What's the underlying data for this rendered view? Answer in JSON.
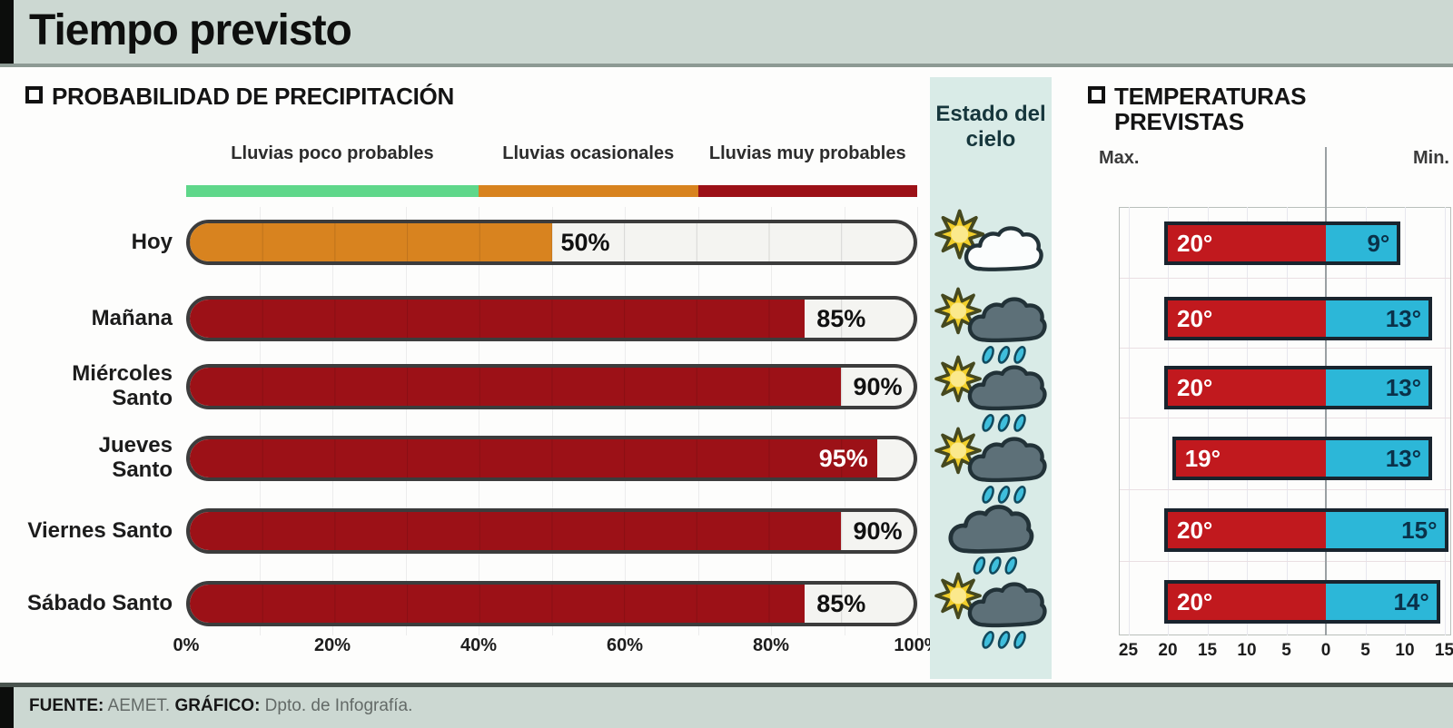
{
  "title": "Tiempo previsto",
  "colors": {
    "band_bg": "#ccd8d2",
    "zone_green": "#5fd78a",
    "zone_orange": "#d8831f",
    "zone_dark_red": "#9c1117",
    "temp_max_red": "#c1191e",
    "temp_min_cyan": "#2cb7d8",
    "sky_bg": "#d9ebe7"
  },
  "precipitation": {
    "heading": "PROBABILIDAD DE PRECIPITACIÓN"
  },
  "sky": {
    "heading": "Estado del cielo",
    "icons": [
      "sun-cloud",
      "sun-rain-cloud",
      "sun-rain-cloud",
      "sun-rain-cloud",
      "rain-cloud",
      "sun-rain-cloud"
    ]
  },
  "temperatures": {
    "heading": "TEMPERATURAS PREVISTAS",
    "max_label": "Max.",
    "min_label": "Min."
  },
  "footer": {
    "source_label": "FUENTE:",
    "source_text": " AEMET. ",
    "graphic_label": "GRÁFICO:",
    "graphic_text": " Dpto. de Infografía."
  },
  "chart_data": [
    {
      "type": "bar",
      "orientation": "horizontal",
      "title": "PROBABILIDAD DE PRECIPITACIÓN",
      "categories": [
        "Hoy",
        "Mañana",
        "Miércoles\nSanto",
        "Jueves\nSanto",
        "Viernes Santo",
        "Sábado Santo"
      ],
      "values": [
        50,
        85,
        90,
        95,
        90,
        85
      ],
      "value_labels": [
        "50%",
        "85%",
        "90%",
        "95%",
        "90%",
        "85%"
      ],
      "xlim": [
        0,
        100
      ],
      "x_ticks": [
        "0%",
        "20%",
        "40%",
        "60%",
        "80%",
        "100%"
      ],
      "grid": true,
      "zones": [
        {
          "label": "Lluvias poco probables",
          "from": 0,
          "to": 40,
          "color": "#5fd78a"
        },
        {
          "label": "Lluvias ocasionales",
          "from": 40,
          "to": 70,
          "color": "#d8831f"
        },
        {
          "label": "Lluvias muy probables",
          "from": 70,
          "to": 100,
          "color": "#9c1117"
        }
      ]
    },
    {
      "type": "bar",
      "orientation": "horizontal-diverging",
      "title": "TEMPERATURAS PREVISTAS",
      "categories": [
        "Hoy",
        "Mañana",
        "Miércoles Santo",
        "Jueves Santo",
        "Viernes Santo",
        "Sábado Santo"
      ],
      "series": [
        {
          "name": "Max.",
          "values": [
            20,
            20,
            20,
            19,
            20,
            20
          ],
          "labels": [
            "20°",
            "20°",
            "20°",
            "19°",
            "20°",
            "20°"
          ],
          "color": "#c1191e",
          "direction": "left"
        },
        {
          "name": "Min.",
          "values": [
            9,
            13,
            13,
            13,
            15,
            14
          ],
          "labels": [
            "9°",
            "13°",
            "13°",
            "13°",
            "15°",
            "14°"
          ],
          "color": "#2cb7d8",
          "direction": "right"
        }
      ],
      "axis_degrees": [
        -25,
        -20,
        -15,
        -10,
        -5,
        0,
        5,
        10,
        15
      ],
      "axis_tick_labels": [
        "25",
        "20",
        "15",
        "10",
        "5",
        "0",
        "5",
        "10",
        "15"
      ],
      "xlim": [
        -25,
        15
      ]
    }
  ]
}
